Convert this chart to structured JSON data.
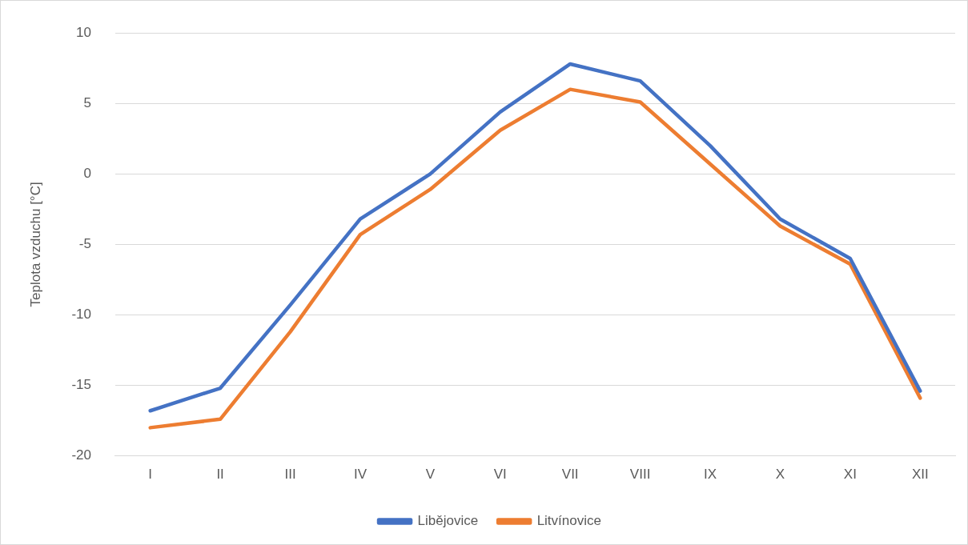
{
  "chart_data": {
    "type": "line",
    "ylabel": "Teplota vzduchu [°C]",
    "categories": [
      "I",
      "II",
      "III",
      "IV",
      "V",
      "VI",
      "VII",
      "VIII",
      "IX",
      "X",
      "XI",
      "XII"
    ],
    "series": [
      {
        "name": "Libějovice",
        "color": "#4472c4",
        "values": [
          -16.8,
          -15.2,
          -9.3,
          -3.2,
          0,
          4.4,
          7.8,
          6.6,
          2.0,
          -3.2,
          -6.0,
          -15.4
        ]
      },
      {
        "name": "Litvínovice",
        "color": "#ed7d31",
        "values": [
          -18.0,
          -17.4,
          -11.2,
          -4.3,
          -1.1,
          3.1,
          6.0,
          5.1,
          0.7,
          -3.7,
          -6.4,
          -15.9
        ]
      }
    ],
    "ylim": [
      -20,
      10
    ],
    "yticks": [
      -20,
      -15,
      -10,
      -5,
      0,
      5,
      10
    ],
    "grid": "y",
    "legend": "bottom",
    "marker": "none",
    "line_style": "solid"
  }
}
